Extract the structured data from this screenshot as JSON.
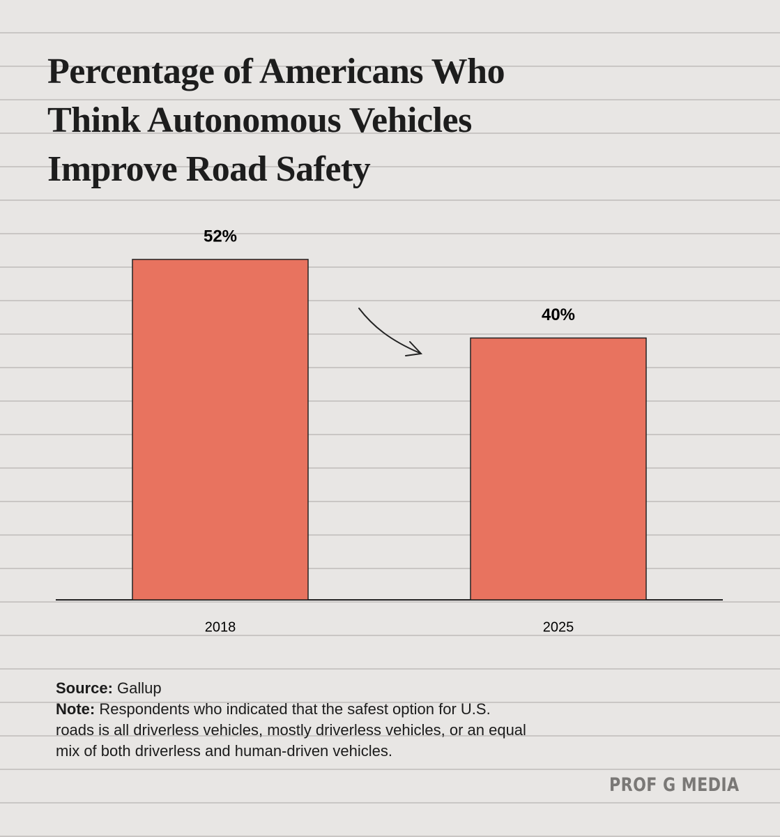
{
  "chart_data": {
    "type": "bar",
    "title": "Percentage of Americans Who Think Autonomous Vehicles Improve Road Safety",
    "categories": [
      "2018",
      "2025"
    ],
    "values": [
      52,
      40
    ],
    "value_labels": [
      "52%",
      "40%"
    ],
    "color": "#e8735f",
    "ylim": [
      0,
      70
    ],
    "source_label": "Source:",
    "source": "Gallup",
    "note_label": "Note:",
    "note": "Respondents who indicated that the safest option for U.S. roads is all driverless vehicles, mostly driverless vehicles, or an equal mix of both driverless and human-driven vehicles.",
    "brand": "PROF G MEDIA"
  }
}
